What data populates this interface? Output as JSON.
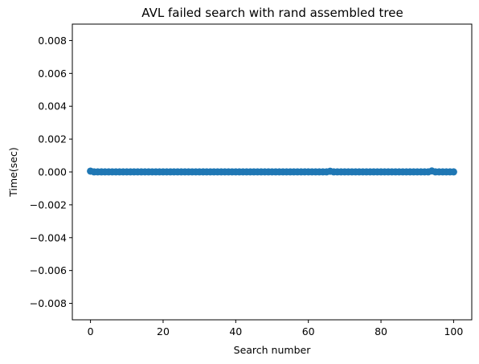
{
  "chart_data": {
    "type": "scatter",
    "title": "AVL failed search with rand assembled tree",
    "xlabel": "Search number",
    "ylabel": "Time(sec)",
    "xlim": [
      -5,
      105
    ],
    "ylim": [
      -0.009,
      0.009
    ],
    "x_ticks": [
      0,
      20,
      40,
      60,
      80,
      100
    ],
    "x_tick_labels": [
      "0",
      "20",
      "40",
      "60",
      "80",
      "100"
    ],
    "y_ticks": [
      0.008,
      0.006,
      0.004,
      0.002,
      0.0,
      -0.002,
      -0.004,
      -0.006,
      -0.008
    ],
    "y_tick_labels": [
      "0.008",
      "0.006",
      "0.004",
      "0.002",
      "0.000",
      "−0.002",
      "−0.004",
      "−0.006",
      "−0.008"
    ],
    "grid": false,
    "marker_color": "#1f77b4",
    "series": [
      {
        "x": [
          0,
          1,
          2,
          3,
          4,
          5,
          6,
          7,
          8,
          9,
          10,
          11,
          12,
          13,
          14,
          15,
          16,
          17,
          18,
          19,
          20,
          21,
          22,
          23,
          24,
          25,
          26,
          27,
          28,
          29,
          30,
          31,
          32,
          33,
          34,
          35,
          36,
          37,
          38,
          39,
          40,
          41,
          42,
          43,
          44,
          45,
          46,
          47,
          48,
          49,
          50,
          51,
          52,
          53,
          54,
          55,
          56,
          57,
          58,
          59,
          60,
          61,
          62,
          63,
          64,
          65,
          66,
          67,
          68,
          69,
          70,
          71,
          72,
          73,
          74,
          75,
          76,
          77,
          78,
          79,
          80,
          81,
          82,
          83,
          84,
          85,
          86,
          87,
          88,
          89,
          90,
          91,
          92,
          93,
          94,
          95,
          96,
          97,
          98,
          99,
          100
        ],
        "y": [
          5e-05,
          5e-06,
          5e-06,
          5e-06,
          5e-06,
          5e-06,
          5e-06,
          5e-06,
          5e-06,
          5e-06,
          5e-06,
          5e-06,
          5e-06,
          5e-06,
          5e-06,
          5e-06,
          5e-06,
          5e-06,
          5e-06,
          5e-06,
          5e-06,
          5e-06,
          5e-06,
          5e-06,
          5e-06,
          5e-06,
          5e-06,
          5e-06,
          5e-06,
          5e-06,
          5e-06,
          5e-06,
          5e-06,
          5e-06,
          5e-06,
          5e-06,
          5e-06,
          5e-06,
          5e-06,
          5e-06,
          5e-06,
          5e-06,
          5e-06,
          5e-06,
          5e-06,
          5e-06,
          5e-06,
          5e-06,
          5e-06,
          5e-06,
          5e-06,
          5e-06,
          5e-06,
          5e-06,
          5e-06,
          5e-06,
          5e-06,
          5e-06,
          5e-06,
          5e-06,
          5e-06,
          5e-06,
          5e-06,
          5e-06,
          5e-06,
          5e-06,
          4e-05,
          5e-06,
          5e-06,
          5e-06,
          5e-06,
          5e-06,
          5e-06,
          5e-06,
          5e-06,
          5e-06,
          5e-06,
          5e-06,
          5e-06,
          5e-06,
          5e-06,
          5e-06,
          5e-06,
          5e-06,
          5e-06,
          5e-06,
          5e-06,
          5e-06,
          5e-06,
          5e-06,
          5e-06,
          5e-06,
          5e-06,
          5e-06,
          6e-05,
          5e-06,
          5e-06,
          5e-06,
          5e-06,
          5e-06,
          5e-06
        ]
      }
    ]
  }
}
